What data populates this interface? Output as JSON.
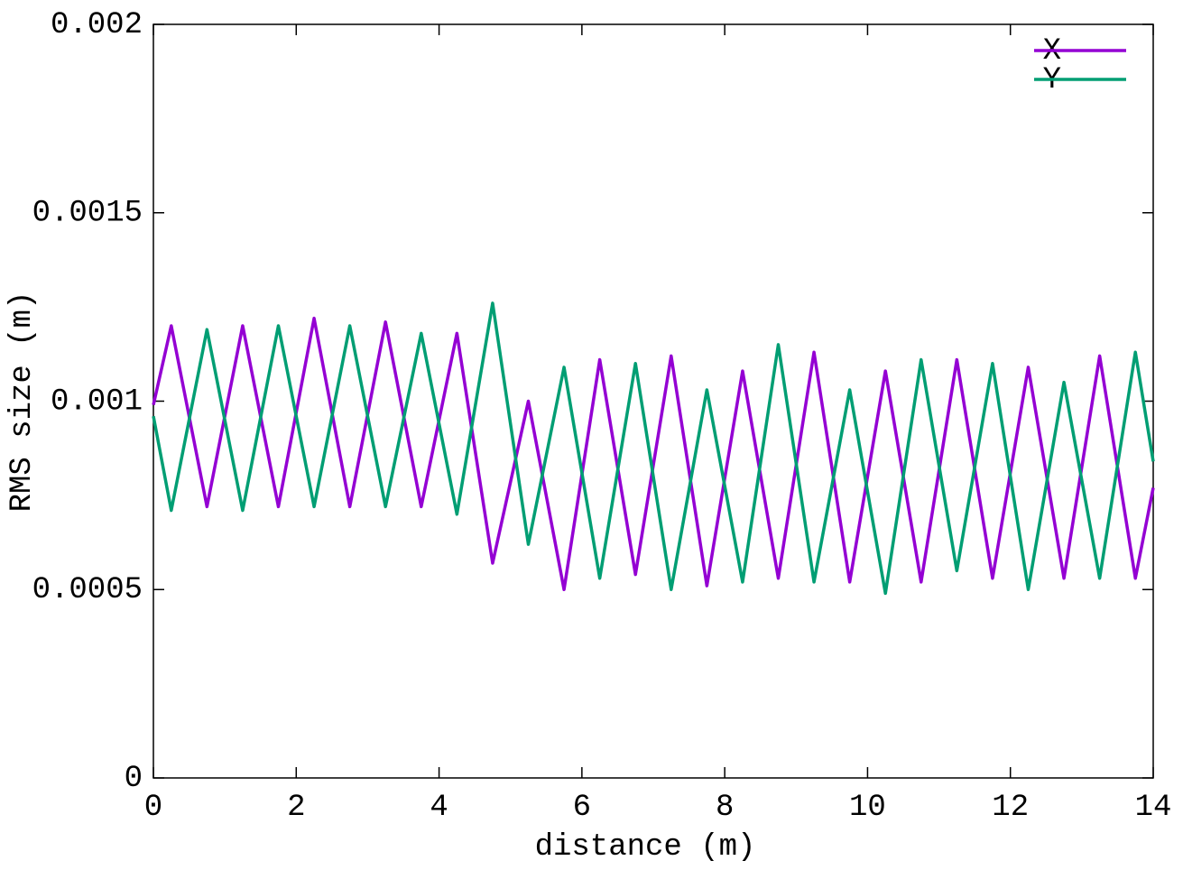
{
  "chart_data": {
    "type": "line",
    "xlabel": "distance (m)",
    "ylabel": "RMS size (m)",
    "x": [
      0,
      0.25,
      0.75,
      1.25,
      1.75,
      2.25,
      2.75,
      3.25,
      3.75,
      4.25,
      4.75,
      5.25,
      5.75,
      6.25,
      6.75,
      7.25,
      7.75,
      8.25,
      8.75,
      9.25,
      9.75,
      10.25,
      10.75,
      11.25,
      11.75,
      12.25,
      12.75,
      13.25,
      13.75,
      14
    ],
    "series": [
      {
        "name": "X",
        "color": "#9400d3",
        "values": [
          0.00099,
          0.0012,
          0.00072,
          0.0012,
          0.00072,
          0.00122,
          0.00072,
          0.00121,
          0.00072,
          0.00118,
          0.00057,
          0.001,
          0.0005,
          0.00111,
          0.00054,
          0.00112,
          0.00051,
          0.00108,
          0.00053,
          0.00113,
          0.00052,
          0.00108,
          0.00052,
          0.00111,
          0.00053,
          0.00109,
          0.00053,
          0.00112,
          0.00053,
          0.00077
        ]
      },
      {
        "name": "Y",
        "color": "#009e73",
        "values": [
          0.00096,
          0.00071,
          0.00119,
          0.00071,
          0.0012,
          0.00072,
          0.0012,
          0.00072,
          0.00118,
          0.0007,
          0.00126,
          0.00062,
          0.00109,
          0.00053,
          0.0011,
          0.0005,
          0.00103,
          0.00052,
          0.00115,
          0.00052,
          0.00103,
          0.00049,
          0.00111,
          0.00055,
          0.0011,
          0.0005,
          0.00105,
          0.00053,
          0.00113,
          0.00084
        ]
      }
    ],
    "xlim": [
      0,
      14
    ],
    "xticks": [
      0,
      2,
      4,
      6,
      8,
      10,
      12,
      14
    ],
    "ylim": [
      0,
      0.002
    ],
    "yticks": [
      0,
      0.0005,
      0.001,
      0.0015,
      0.002
    ],
    "grid": false,
    "legend": "top-right"
  }
}
